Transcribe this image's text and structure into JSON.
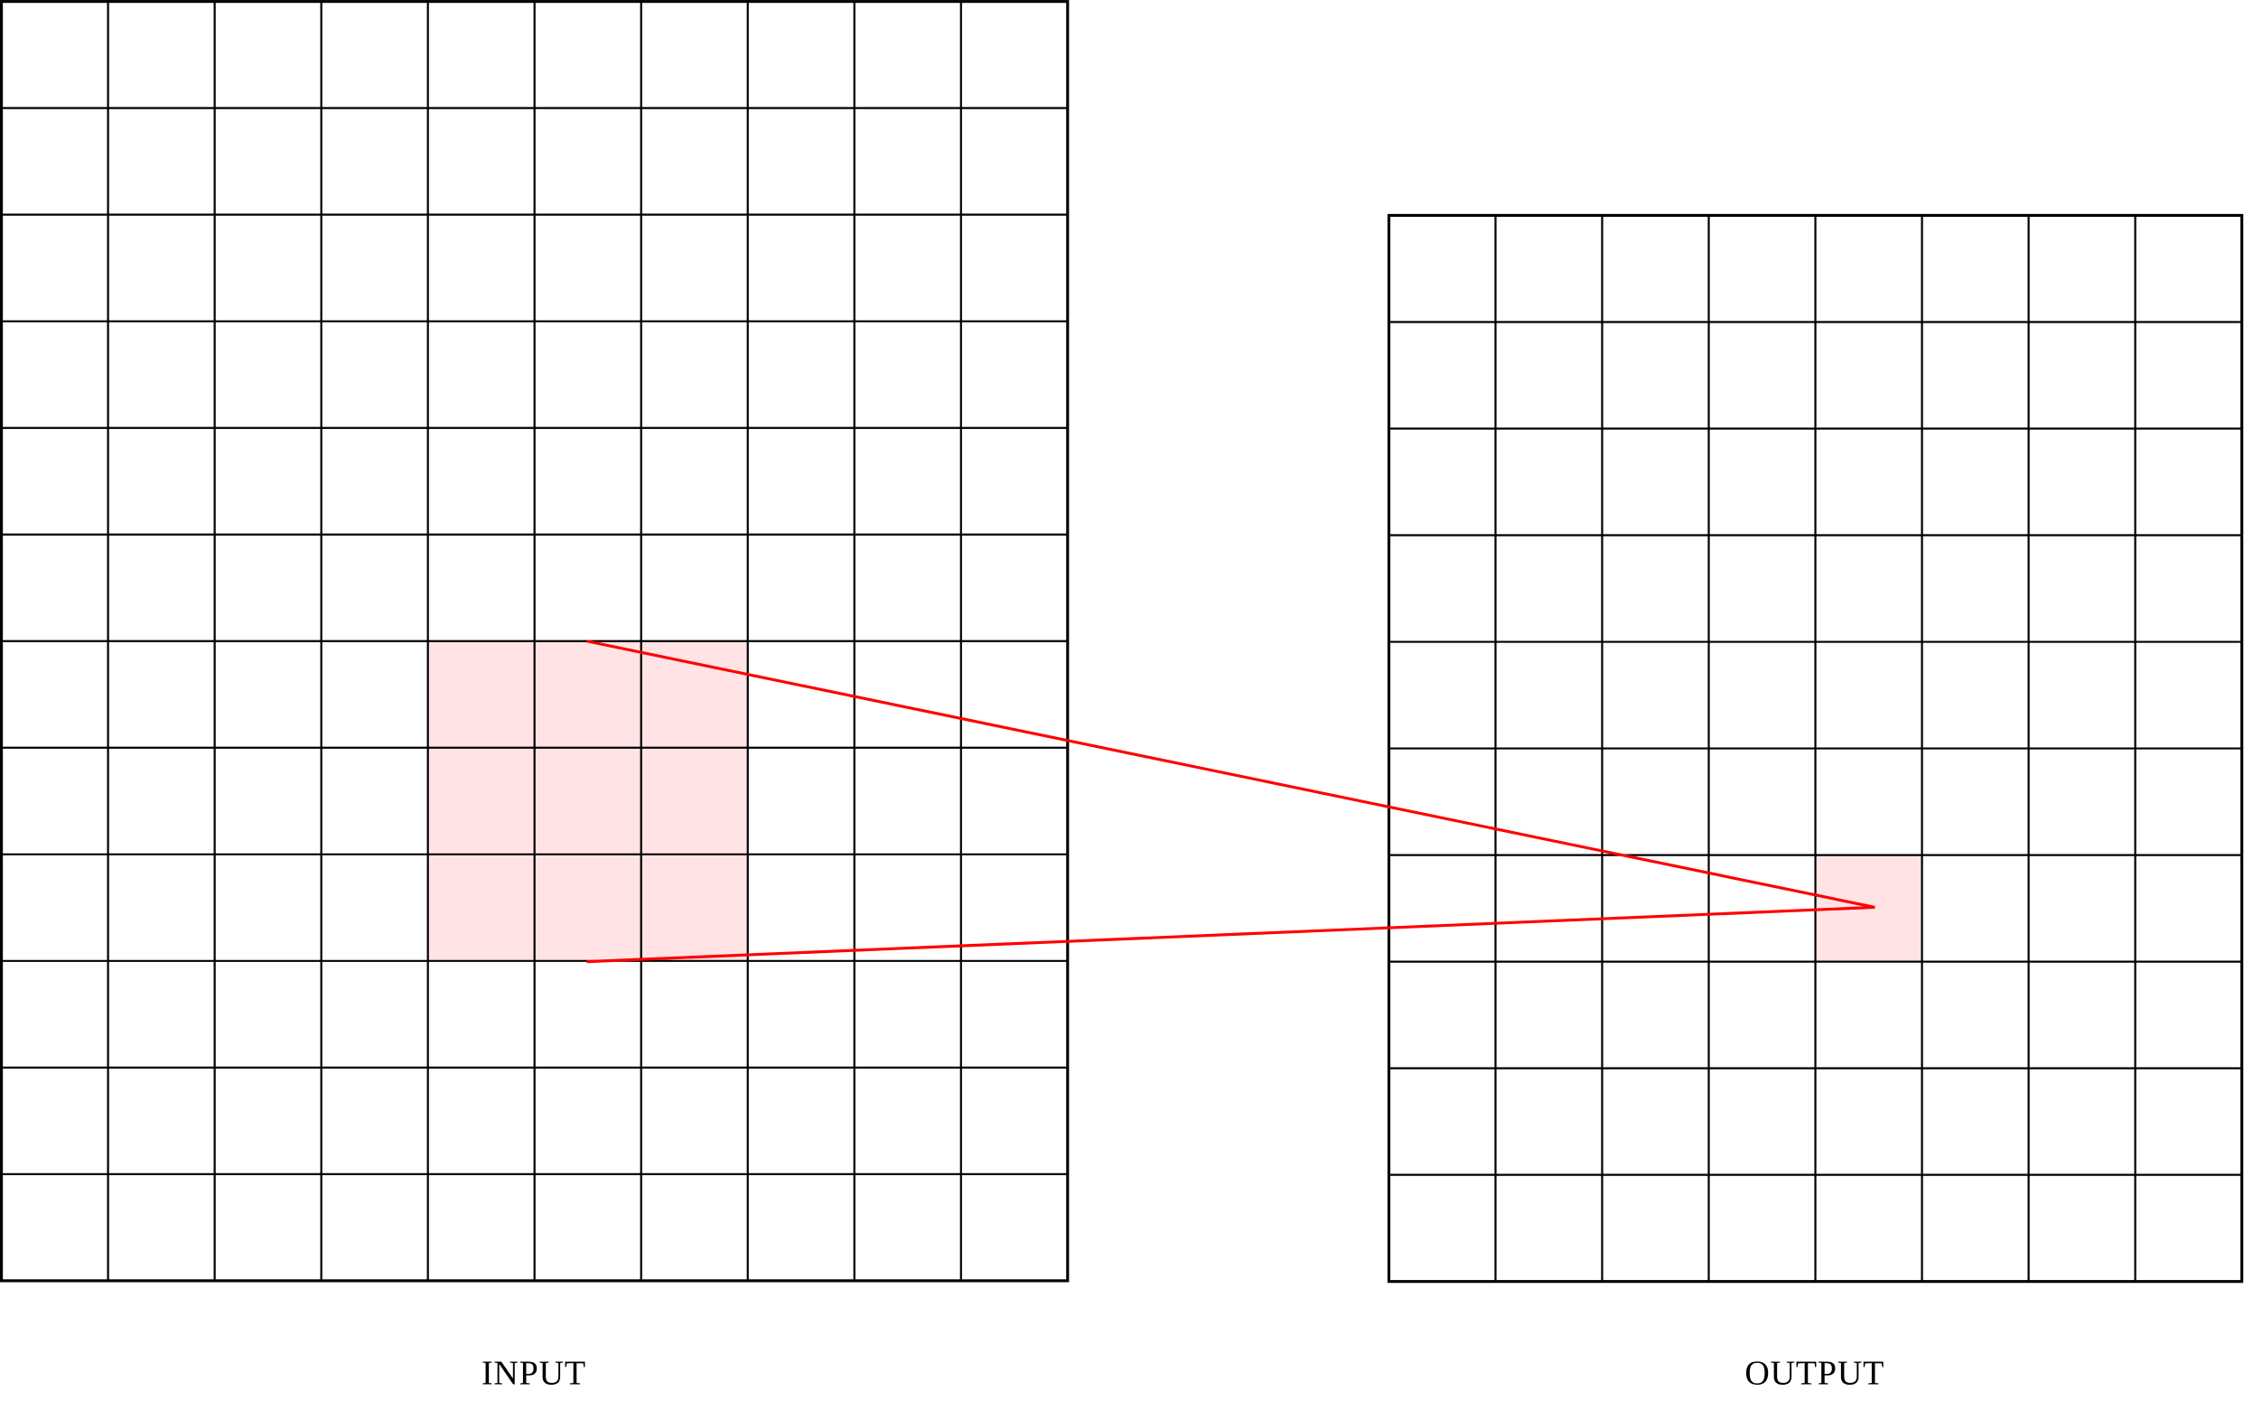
{
  "input": {
    "label": "INPUT"
  },
  "output": {
    "label": "OUTPUT"
  }
}
